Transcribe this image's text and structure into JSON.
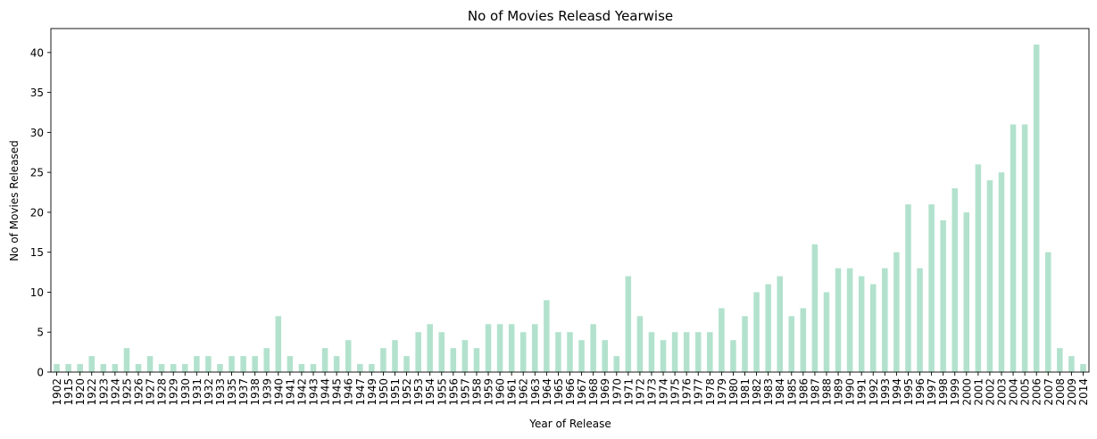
{
  "chart_data": {
    "type": "bar",
    "title": "No of Movies Releasd Yearwise",
    "xlabel": "Year of Release",
    "ylabel": "No of Movies Released",
    "ylim": [
      0,
      43
    ],
    "yticks": [
      0,
      5,
      10,
      15,
      20,
      25,
      30,
      35,
      40
    ],
    "grid": false,
    "bar_color": "#b2e2cd",
    "categories": [
      "1902",
      "1915",
      "1920",
      "1922",
      "1923",
      "1924",
      "1925",
      "1926",
      "1927",
      "1928",
      "1929",
      "1930",
      "1931",
      "1932",
      "1933",
      "1935",
      "1937",
      "1938",
      "1939",
      "1940",
      "1941",
      "1942",
      "1943",
      "1944",
      "1945",
      "1946",
      "1947",
      "1949",
      "1950",
      "1951",
      "1952",
      "1953",
      "1954",
      "1955",
      "1956",
      "1957",
      "1958",
      "1959",
      "1960",
      "1961",
      "1962",
      "1963",
      "1964",
      "1965",
      "1966",
      "1967",
      "1968",
      "1969",
      "1970",
      "1971",
      "1972",
      "1973",
      "1974",
      "1975",
      "1976",
      "1977",
      "1978",
      "1979",
      "1980",
      "1981",
      "1982",
      "1983",
      "1984",
      "1985",
      "1986",
      "1987",
      "1988",
      "1989",
      "1990",
      "1991",
      "1992",
      "1993",
      "1994",
      "1995",
      "1996",
      "1997",
      "1998",
      "1999",
      "2000",
      "2001",
      "2002",
      "2003",
      "2004",
      "2005",
      "2006",
      "2007",
      "2008",
      "2009",
      "2014"
    ],
    "values": [
      1,
      1,
      1,
      2,
      1,
      1,
      3,
      1,
      2,
      1,
      1,
      1,
      2,
      2,
      1,
      2,
      2,
      2,
      3,
      7,
      2,
      1,
      1,
      3,
      2,
      4,
      1,
      1,
      3,
      4,
      2,
      5,
      6,
      5,
      3,
      4,
      3,
      6,
      6,
      6,
      5,
      6,
      9,
      5,
      5,
      4,
      6,
      4,
      2,
      12,
      7,
      5,
      4,
      5,
      5,
      5,
      5,
      8,
      4,
      7,
      10,
      11,
      12,
      7,
      8,
      16,
      10,
      13,
      13,
      12,
      11,
      13,
      15,
      21,
      13,
      21,
      19,
      23,
      20,
      26,
      24,
      25,
      31,
      31,
      41,
      15,
      3,
      2,
      1
    ]
  }
}
